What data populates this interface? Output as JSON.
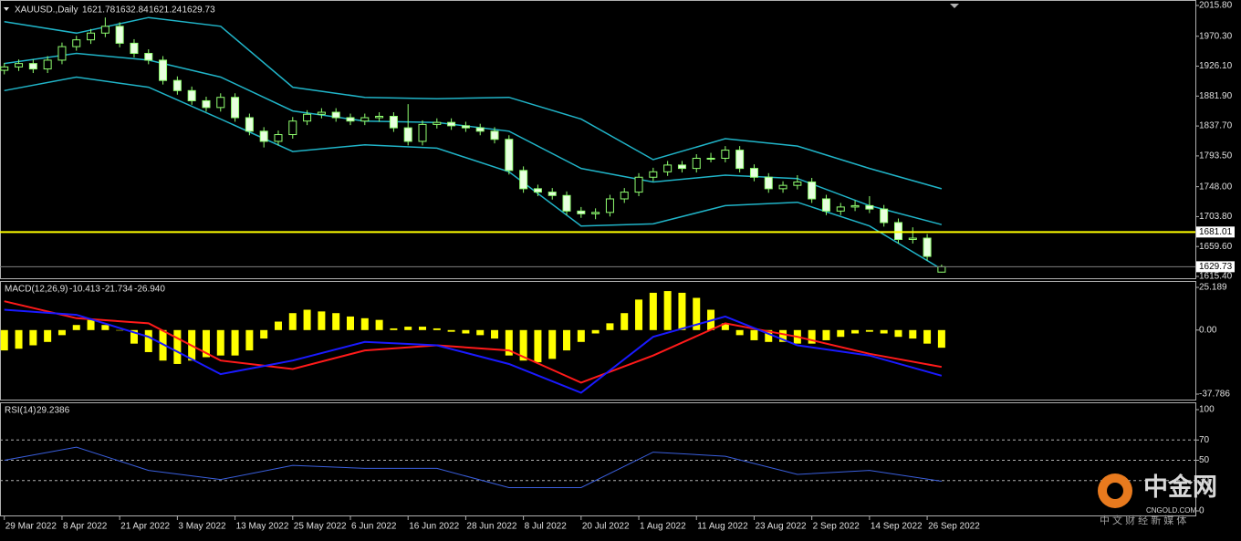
{
  "watermark": {
    "name": "中金网",
    "site": "CNGOLD.COM",
    "tagline": "中 文 财 经 新 媒 体"
  },
  "chart_data": [
    {
      "type": "candlestick",
      "symbol": "XAUUSD.,Daily",
      "up_color": "#000000",
      "down_color": "#e8ffe0",
      "wick_color": "#90ff70",
      "x": [
        0,
        2,
        4,
        6,
        8,
        10,
        12,
        14,
        16,
        18,
        20,
        22,
        24,
        26,
        28,
        30,
        32,
        34,
        36,
        38,
        40,
        42,
        44,
        46,
        48,
        50,
        52,
        54,
        56,
        58,
        60,
        62,
        64,
        66,
        68,
        70,
        72,
        74,
        76,
        78,
        80,
        82,
        84,
        86,
        88,
        90,
        92,
        94,
        96,
        98,
        100,
        102,
        104,
        106,
        108,
        110,
        112,
        114,
        116,
        118,
        120,
        122,
        124,
        126,
        128,
        130
      ],
      "open": [
        1920,
        1925,
        1930,
        1922,
        1935,
        1955,
        1965,
        1975,
        1985,
        1960,
        1945,
        1935,
        1905,
        1890,
        1875,
        1865,
        1880,
        1850,
        1830,
        1815,
        1825,
        1845,
        1855,
        1858,
        1850,
        1845,
        1850,
        1852,
        1835,
        1815,
        1840,
        1843,
        1838,
        1835,
        1830,
        1818,
        1772,
        1745,
        1740,
        1735,
        1712,
        1708,
        1710,
        1730,
        1740,
        1762,
        1770,
        1780,
        1775,
        1790,
        1790,
        1802,
        1775,
        1762,
        1745,
        1750,
        1755,
        1730,
        1712,
        1718,
        1720,
        1715,
        1695,
        1670,
        1672,
        1621.78
      ],
      "high": [
        1931,
        1936,
        1936,
        1941,
        1961,
        1971,
        1981,
        1998,
        1991,
        1966,
        1951,
        1941,
        1911,
        1896,
        1881,
        1886,
        1886,
        1856,
        1836,
        1831,
        1851,
        1861,
        1864,
        1864,
        1856,
        1856,
        1858,
        1858,
        1870,
        1846,
        1849,
        1849,
        1844,
        1841,
        1836,
        1824,
        1778,
        1751,
        1746,
        1741,
        1718,
        1716,
        1736,
        1746,
        1768,
        1776,
        1786,
        1786,
        1796,
        1798,
        1808,
        1808,
        1781,
        1768,
        1756,
        1765,
        1761,
        1736,
        1724,
        1728,
        1734,
        1721,
        1701,
        1688,
        1678,
        1632.84
      ],
      "low": [
        1914,
        1919,
        1916,
        1916,
        1929,
        1949,
        1959,
        1969,
        1954,
        1939,
        1929,
        1899,
        1884,
        1869,
        1859,
        1859,
        1844,
        1824,
        1806,
        1809,
        1819,
        1839,
        1849,
        1844,
        1839,
        1839,
        1844,
        1829,
        1809,
        1809,
        1834,
        1832,
        1829,
        1824,
        1812,
        1766,
        1739,
        1734,
        1729,
        1706,
        1702,
        1700,
        1704,
        1724,
        1734,
        1756,
        1764,
        1769,
        1769,
        1784,
        1784,
        1769,
        1756,
        1739,
        1739,
        1744,
        1724,
        1706,
        1706,
        1712,
        1709,
        1689,
        1664,
        1664,
        1639,
        1621.24
      ],
      "close": [
        1925,
        1930,
        1922,
        1935,
        1955,
        1965,
        1975,
        1985,
        1960,
        1945,
        1935,
        1905,
        1890,
        1875,
        1865,
        1880,
        1850,
        1830,
        1815,
        1825,
        1845,
        1855,
        1858,
        1850,
        1845,
        1850,
        1852,
        1835,
        1815,
        1840,
        1843,
        1838,
        1835,
        1830,
        1818,
        1772,
        1745,
        1740,
        1735,
        1712,
        1708,
        1710,
        1730,
        1740,
        1762,
        1770,
        1780,
        1775,
        1790,
        1790,
        1802,
        1775,
        1762,
        1745,
        1750,
        1755,
        1730,
        1712,
        1718,
        1720,
        1715,
        1695,
        1670,
        1672,
        1645,
        1629.73
      ],
      "bands": {
        "color": "#20b4c8",
        "x": [
          0,
          10,
          20,
          30,
          40,
          50,
          60,
          70,
          80,
          90,
          100,
          110,
          120,
          130
        ],
        "upper": [
          1992,
          1975,
          1998,
          1985,
          1895,
          1880,
          1878,
          1880,
          1848,
          1788,
          1819,
          1808,
          1775,
          1745
        ],
        "middle": [
          1930,
          1945,
          1935,
          1910,
          1860,
          1845,
          1843,
          1830,
          1775,
          1755,
          1765,
          1760,
          1720,
          1692
        ],
        "lower": [
          1890,
          1910,
          1895,
          1848,
          1800,
          1810,
          1805,
          1770,
          1690,
          1693,
          1720,
          1725,
          1690,
          1626
        ]
      },
      "hlines": [
        {
          "value": 1681.01,
          "color": "#ffff00"
        },
        {
          "value": 1629.73,
          "color": "#808080"
        }
      ],
      "xlim": [
        -0.6,
        165.2
      ],
      "ylim": [
        1615.4,
        2015.8
      ],
      "yticks": [
        {
          "value": 2015.8,
          "label": "2015.80"
        },
        {
          "value": 1970.3,
          "label": "1970.30"
        },
        {
          "value": 1926.1,
          "label": "1926.10"
        },
        {
          "value": 1881.9,
          "label": "1881.90"
        },
        {
          "value": 1837.7,
          "label": "1837.70"
        },
        {
          "value": 1793.5,
          "label": "1793.50"
        },
        {
          "value": 1748,
          "label": "1748.00"
        },
        {
          "value": 1703.8,
          "label": "1703.80"
        },
        {
          "value": 1659.6,
          "label": "1659.60"
        },
        {
          "value": 1615.4,
          "label": "1615.40"
        }
      ]
    },
    {
      "type": "macd",
      "title": "MACD(12,26,9)",
      "readout": [
        "-10.413",
        "-21.734",
        "-26.940"
      ],
      "x": [
        0,
        2,
        4,
        6,
        8,
        10,
        12,
        14,
        16,
        18,
        20,
        22,
        24,
        26,
        28,
        30,
        32,
        34,
        36,
        38,
        40,
        42,
        44,
        46,
        48,
        50,
        52,
        54,
        56,
        58,
        60,
        62,
        64,
        66,
        68,
        70,
        72,
        74,
        76,
        78,
        80,
        82,
        84,
        86,
        88,
        90,
        92,
        94,
        96,
        98,
        100,
        102,
        104,
        106,
        108,
        110,
        112,
        114,
        116,
        118,
        120,
        122,
        124,
        126,
        128,
        130
      ],
      "histogram": {
        "color": "#ffff00",
        "values": [
          -12,
          -11,
          -9,
          -7,
          -3,
          3,
          6,
          3,
          0,
          -8,
          -13,
          -18,
          -20,
          -18,
          -16,
          -15,
          -15,
          -12,
          -5,
          5,
          10,
          12,
          11,
          10,
          8,
          7,
          6,
          1,
          2,
          2,
          1,
          -1,
          -2,
          -3,
          -5,
          -15,
          -18,
          -19,
          -17,
          -12,
          -7,
          -2,
          4,
          10,
          18,
          22,
          23,
          22,
          19,
          12,
          4,
          -3,
          -6,
          -7,
          -7,
          -8,
          -8,
          -6,
          -4,
          -2,
          -1,
          -2,
          -4,
          -5,
          -8,
          -10.413
        ]
      },
      "lines": [
        {
          "color": "#ff1a1a",
          "x": [
            0,
            10,
            20,
            30,
            40,
            50,
            60,
            70,
            80,
            90,
            100,
            110,
            120,
            130
          ],
          "values": [
            17,
            7,
            4,
            -18,
            -23,
            -12,
            -9,
            -12,
            -31,
            -15,
            4,
            -4,
            -14,
            -21.734
          ]
        },
        {
          "color": "#1a1aff",
          "x": [
            0,
            10,
            20,
            30,
            40,
            50,
            60,
            70,
            80,
            90,
            100,
            110,
            120,
            130
          ],
          "values": [
            12,
            9,
            -4,
            -26,
            -18,
            -7,
            -9,
            -20,
            -37,
            -4,
            8,
            -9,
            -15,
            -26.94
          ]
        }
      ],
      "xlim": [
        -0.6,
        165.2
      ],
      "ylim": [
        -37.786,
        25.189
      ],
      "yticks": [
        25.189,
        {
          "value": 0,
          "label": "0.00"
        },
        -37.786
      ]
    },
    {
      "type": "rsi",
      "title": "RSI(14)",
      "color": "#3a5fdd",
      "x": [
        0,
        10,
        20,
        30,
        40,
        50,
        60,
        70,
        80,
        90,
        100,
        110,
        120,
        130
      ],
      "values": [
        50,
        63,
        40,
        31,
        45,
        42,
        42,
        23,
        23,
        58,
        54,
        36,
        40,
        29.2386
      ],
      "levels": [
        70,
        50,
        30
      ],
      "xlim": [
        -0.6,
        165.2
      ],
      "ylim": [
        0,
        100
      ],
      "yticks": [
        100,
        70,
        50,
        30,
        0
      ],
      "xticks": [
        {
          "value": 0,
          "label": "29 Mar 2022"
        },
        {
          "value": 8,
          "label": "8 Apr 2022"
        },
        {
          "value": 16,
          "label": "21 Apr 2022"
        },
        {
          "value": 24,
          "label": "3 May 2022"
        },
        {
          "value": 32,
          "label": "13 May 2022"
        },
        {
          "value": 40,
          "label": "25 May 2022"
        },
        {
          "value": 48,
          "label": "6 Jun 2022"
        },
        {
          "value": 56,
          "label": "16 Jun 2022"
        },
        {
          "value": 64,
          "label": "28 Jun 2022"
        },
        {
          "value": 72,
          "label": "8 Jul 2022"
        },
        {
          "value": 80,
          "label": "20 Jul 2022"
        },
        {
          "value": 88,
          "label": "1 Aug 2022"
        },
        {
          "value": 96,
          "label": "11 Aug 2022"
        },
        {
          "value": 104,
          "label": "23 Aug 2022"
        },
        {
          "value": 112,
          "label": "2 Sep 2022"
        },
        {
          "value": 120,
          "label": "14 Sep 2022"
        },
        {
          "value": 128,
          "label": "26 Sep 2022"
        }
      ]
    }
  ]
}
